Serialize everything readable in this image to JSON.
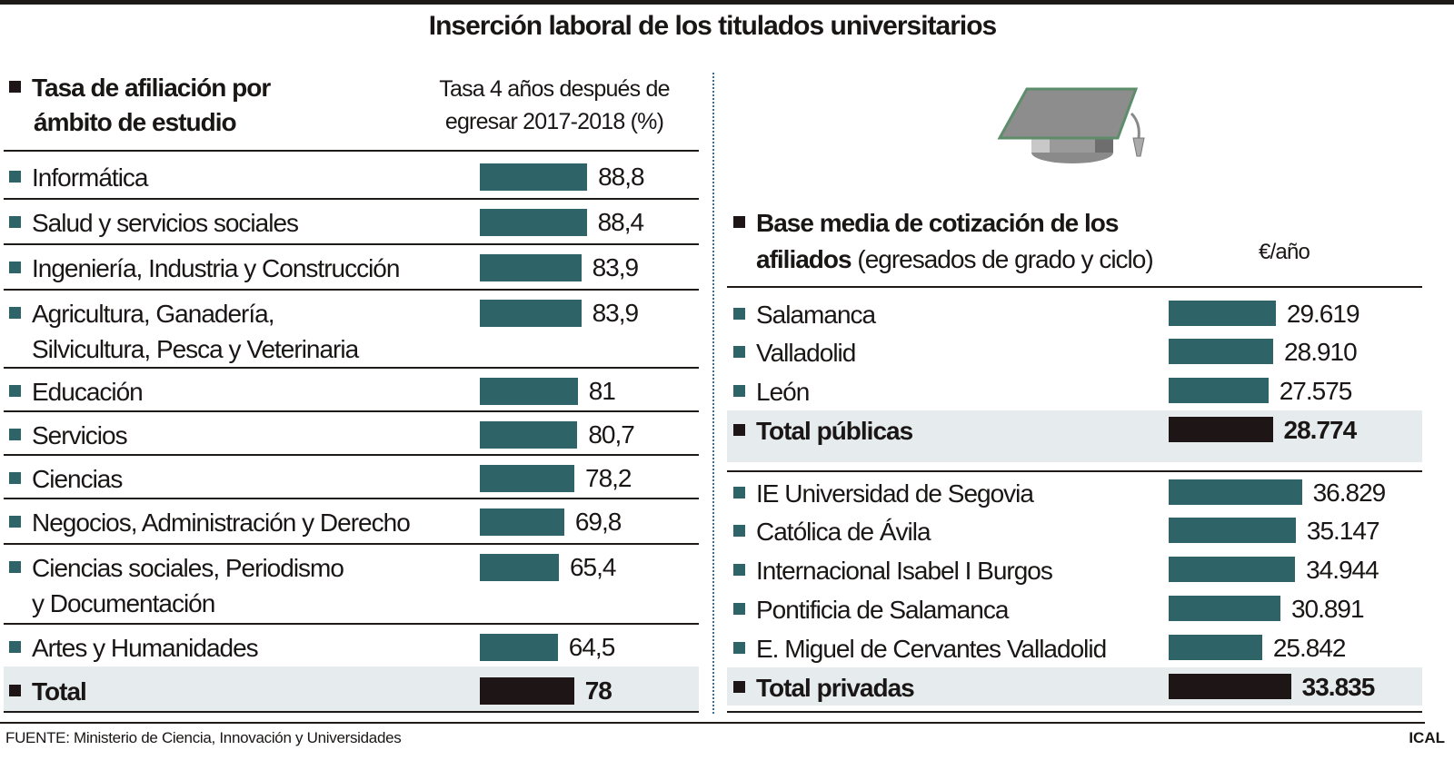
{
  "title": "Inserción laboral de los titulados universitarios",
  "colors": {
    "bar": "#2e6468",
    "total_bar": "#1e1616",
    "total_band": "#e6ecee"
  },
  "chart_data": [
    {
      "type": "bar",
      "orientation": "horizontal",
      "title_lines": [
        "Tasa de afiliación por",
        "ámbito de estudio"
      ],
      "unit_lines": [
        "Tasa 4 años después de",
        "egresar 2017-2018 (%)"
      ],
      "categories": [
        [
          "Informática"
        ],
        [
          "Salud y servicios sociales"
        ],
        [
          "Ingeniería, Industria y Construcción"
        ],
        [
          "Agricultura, Ganadería,",
          "Silvicultura, Pesca y Veterinaria"
        ],
        [
          "Educación"
        ],
        [
          "Servicios"
        ],
        [
          "Ciencias"
        ],
        [
          "Negocios, Administración y Derecho"
        ],
        [
          "Ciencias sociales, Periodismo",
          "y Documentación"
        ],
        [
          "Artes y Humanidades"
        ],
        [
          "Total"
        ]
      ],
      "values": [
        88.8,
        88.4,
        83.9,
        83.9,
        81,
        80.7,
        78.2,
        69.8,
        65.4,
        64.5,
        78
      ],
      "value_labels": [
        "88,8",
        "88,4",
        "83,9",
        "83,9",
        "81",
        "80,7",
        "78,2",
        "69,8",
        "65,4",
        "64,5",
        "78"
      ],
      "total_index": 10
    },
    {
      "type": "bar",
      "orientation": "horizontal",
      "title_bold": "Base media de cotización de los",
      "title_bold2": "afiliados",
      "title_rest": " (egresados de grado y ciclo)",
      "unit": "€/año",
      "groups": [
        {
          "categories": [
            "Salamanca",
            "Valladolid",
            "León",
            "Total públicas"
          ],
          "values": [
            29619,
            28910,
            27575,
            28774
          ],
          "value_labels": [
            "29.619",
            "28.910",
            "27.575",
            "28.774"
          ]
        },
        {
          "categories": [
            "IE Universidad de Segovia",
            "Católica de Ávila",
            "Internacional Isabel I Burgos",
            "Pontificia de Salamanca",
            "E. Miguel de Cervantes Valladolid",
            "Total privadas"
          ],
          "values": [
            36829,
            35147,
            34944,
            30891,
            25842,
            33835
          ],
          "value_labels": [
            "36.829",
            "35.147",
            "34.944",
            "30.891",
            "25.842",
            "33.835"
          ]
        }
      ]
    }
  ],
  "footer": {
    "source": "FUENTE: Ministerio de Ciencia, Innovación y Universidades",
    "credit": "ICAL"
  }
}
